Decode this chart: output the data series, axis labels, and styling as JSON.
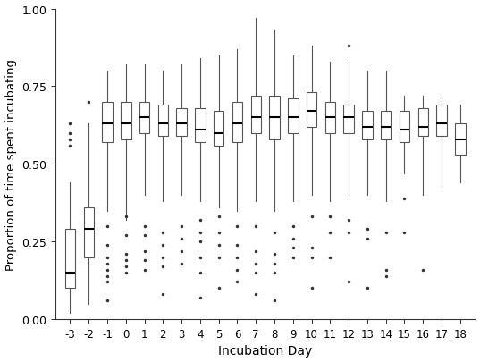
{
  "days": [
    -3,
    -2,
    -1,
    0,
    1,
    2,
    3,
    4,
    5,
    6,
    7,
    8,
    9,
    10,
    11,
    12,
    13,
    14,
    15,
    16,
    17,
    18
  ],
  "boxplot_stats": {
    "-3": {
      "q1": 0.1,
      "median": 0.15,
      "q3": 0.29,
      "whislo": 0.02,
      "whishi": 0.44,
      "fliers": [
        0.63,
        0.6,
        0.58,
        0.56
      ]
    },
    "-2": {
      "q1": 0.2,
      "median": 0.29,
      "q3": 0.36,
      "whislo": 0.05,
      "whishi": 0.63,
      "fliers": [
        0.7
      ]
    },
    "-1": {
      "q1": 0.57,
      "median": 0.63,
      "q3": 0.7,
      "whislo": 0.35,
      "whishi": 0.8,
      "fliers": [
        0.12,
        0.14,
        0.16,
        0.18,
        0.2,
        0.24,
        0.3,
        0.06
      ]
    },
    "0": {
      "q1": 0.58,
      "median": 0.63,
      "q3": 0.7,
      "whislo": 0.32,
      "whishi": 0.82,
      "fliers": [
        0.15,
        0.17,
        0.19,
        0.21,
        0.27,
        0.33
      ]
    },
    "1": {
      "q1": 0.6,
      "median": 0.65,
      "q3": 0.7,
      "whislo": 0.4,
      "whishi": 0.82,
      "fliers": [
        0.16,
        0.19,
        0.22,
        0.27,
        0.3
      ]
    },
    "2": {
      "q1": 0.59,
      "median": 0.63,
      "q3": 0.69,
      "whislo": 0.38,
      "whishi": 0.8,
      "fliers": [
        0.17,
        0.2,
        0.24,
        0.28,
        0.08
      ]
    },
    "3": {
      "q1": 0.59,
      "median": 0.63,
      "q3": 0.68,
      "whislo": 0.4,
      "whishi": 0.82,
      "fliers": [
        0.18,
        0.22,
        0.26,
        0.3
      ]
    },
    "4": {
      "q1": 0.57,
      "median": 0.61,
      "q3": 0.68,
      "whislo": 0.38,
      "whishi": 0.84,
      "fliers": [
        0.15,
        0.2,
        0.25,
        0.28,
        0.32,
        0.07
      ]
    },
    "5": {
      "q1": 0.56,
      "median": 0.6,
      "q3": 0.67,
      "whislo": 0.36,
      "whishi": 0.85,
      "fliers": [
        0.2,
        0.24,
        0.28,
        0.33,
        0.1
      ]
    },
    "6": {
      "q1": 0.57,
      "median": 0.63,
      "q3": 0.7,
      "whislo": 0.35,
      "whishi": 0.87,
      "fliers": [
        0.12,
        0.16,
        0.2,
        0.24,
        0.3
      ]
    },
    "7": {
      "q1": 0.6,
      "median": 0.65,
      "q3": 0.72,
      "whislo": 0.38,
      "whishi": 0.97,
      "fliers": [
        0.15,
        0.18,
        0.22,
        0.08,
        0.3
      ]
    },
    "8": {
      "q1": 0.58,
      "median": 0.65,
      "q3": 0.72,
      "whislo": 0.35,
      "whishi": 0.93,
      "fliers": [
        0.15,
        0.18,
        0.21,
        0.28,
        0.06
      ]
    },
    "9": {
      "q1": 0.6,
      "median": 0.65,
      "q3": 0.71,
      "whislo": 0.38,
      "whishi": 0.85,
      "fliers": [
        0.2,
        0.23,
        0.26,
        0.3
      ]
    },
    "10": {
      "q1": 0.62,
      "median": 0.67,
      "q3": 0.73,
      "whislo": 0.4,
      "whishi": 0.88,
      "fliers": [
        0.2,
        0.23,
        0.33,
        0.1
      ]
    },
    "11": {
      "q1": 0.6,
      "median": 0.65,
      "q3": 0.7,
      "whislo": 0.38,
      "whishi": 0.83,
      "fliers": [
        0.2,
        0.28,
        0.33
      ]
    },
    "12": {
      "q1": 0.6,
      "median": 0.65,
      "q3": 0.69,
      "whislo": 0.4,
      "whishi": 0.83,
      "fliers": [
        0.12,
        0.28,
        0.32,
        0.88
      ]
    },
    "13": {
      "q1": 0.58,
      "median": 0.62,
      "q3": 0.67,
      "whislo": 0.4,
      "whishi": 0.8,
      "fliers": [
        0.29,
        0.26,
        0.1
      ]
    },
    "14": {
      "q1": 0.58,
      "median": 0.62,
      "q3": 0.67,
      "whislo": 0.38,
      "whishi": 0.8,
      "fliers": [
        0.14,
        0.28,
        0.16
      ]
    },
    "15": {
      "q1": 0.57,
      "median": 0.61,
      "q3": 0.67,
      "whislo": 0.47,
      "whishi": 0.72,
      "fliers": [
        0.28,
        0.39
      ]
    },
    "16": {
      "q1": 0.59,
      "median": 0.62,
      "q3": 0.68,
      "whislo": 0.4,
      "whishi": 0.72,
      "fliers": [
        0.16
      ]
    },
    "17": {
      "q1": 0.59,
      "median": 0.63,
      "q3": 0.69,
      "whislo": 0.42,
      "whishi": 0.72,
      "fliers": []
    },
    "18": {
      "q1": 0.53,
      "median": 0.58,
      "q3": 0.63,
      "whislo": 0.44,
      "whishi": 0.69,
      "fliers": []
    }
  },
  "ylim": [
    0.0,
    1.0
  ],
  "yticks": [
    0.0,
    0.25,
    0.5,
    0.75,
    1.0
  ],
  "ytick_labels": [
    "0.00",
    "0.25",
    "0.50",
    "0.75",
    "1.00"
  ],
  "xlabel": "Incubation Day",
  "ylabel": "Proportion of time spent incubating",
  "background_color": "#ffffff",
  "box_color": "#ffffff",
  "median_color": "#000000",
  "whisker_color": "#555555",
  "flier_color": "#333333",
  "box_edge_color": "#555555",
  "spine_color": "#333333",
  "box_width": 0.55,
  "cap_ratio": 0.5,
  "figsize": [
    5.37,
    4.06
  ],
  "dpi": 100
}
